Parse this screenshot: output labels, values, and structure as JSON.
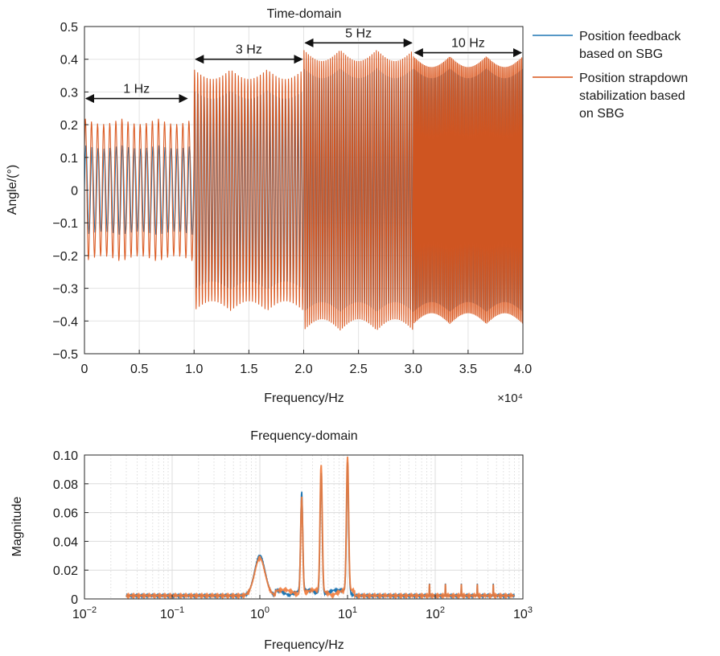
{
  "chart_data": [
    {
      "type": "line",
      "title": "Time-domain",
      "xlabel": "Frequency/Hz",
      "ylabel": "Angle/(°)",
      "x_multiplier": "×10⁴",
      "xlim": [
        0,
        4.0
      ],
      "ylim": [
        -0.5,
        0.5
      ],
      "x_ticks": [
        "0",
        "0.5",
        "1.0",
        "1.5",
        "2.0",
        "2.5",
        "3.0",
        "3.5",
        "4.0"
      ],
      "y_ticks": [
        "0.5",
        "0.4",
        "0.3",
        "0.2",
        "0.1",
        "0",
        "−0.1",
        "−0.2",
        "−0.3",
        "−0.4",
        "−0.5"
      ],
      "grid": true,
      "legend_position": "right",
      "series": [
        {
          "name": "Position feedback based on SBG",
          "color": "#1f77b4",
          "segments": [
            {
              "x_range": [
                0,
                1.0
              ],
              "amplitude": 0.14,
              "cycles": 18
            },
            {
              "x_range": [
                1.0,
                2.0
              ],
              "amplitude": 0.31,
              "cycles": 35
            },
            {
              "x_range": [
                2.0,
                3.0
              ],
              "amplitude": 0.38,
              "cycles": 50
            },
            {
              "x_range": [
                3.0,
                4.0
              ],
              "amplitude": 0.38,
              "cycles": 80
            }
          ]
        },
        {
          "name": "Position strapdown stabilization based on SBG",
          "color": "#d95319",
          "segments": [
            {
              "x_range": [
                0,
                1.0
              ],
              "amplitude": 0.22,
              "cycles": 18
            },
            {
              "x_range": [
                1.0,
                2.0
              ],
              "amplitude": 0.37,
              "cycles": 35
            },
            {
              "x_range": [
                2.0,
                3.0
              ],
              "amplitude": 0.43,
              "cycles": 50
            },
            {
              "x_range": [
                3.0,
                4.0
              ],
              "amplitude": 0.41,
              "cycles": 80
            }
          ]
        }
      ],
      "annotations": [
        {
          "label": "1 Hz",
          "x_range": [
            0.0,
            0.95
          ],
          "y": 0.28
        },
        {
          "label": "3 Hz",
          "x_range": [
            1.0,
            2.0
          ],
          "y": 0.4
        },
        {
          "label": "5 Hz",
          "x_range": [
            2.0,
            3.0
          ],
          "y": 0.45
        },
        {
          "label": "10 Hz",
          "x_range": [
            3.0,
            4.0
          ],
          "y": 0.42
        }
      ]
    },
    {
      "type": "line",
      "title": "Frequency-domain",
      "xlabel": "Frequency/Hz",
      "ylabel": "Magnitude",
      "xscale": "log",
      "xlim": [
        0.01,
        1000
      ],
      "ylim": [
        0,
        0.1
      ],
      "x_ticks": [
        {
          "base": "10",
          "exp": "−2"
        },
        {
          "base": "10",
          "exp": "−1"
        },
        {
          "base": "10",
          "exp": "0"
        },
        {
          "base": "10",
          "exp": "1"
        },
        {
          "base": "10",
          "exp": "2"
        },
        {
          "base": "10",
          "exp": "3"
        }
      ],
      "y_ticks": [
        "0.10",
        "0.08",
        "0.06",
        "0.04",
        "0.02",
        "0"
      ],
      "grid": true,
      "series": [
        {
          "name": "",
          "color": "#1f77b4",
          "peaks": [
            {
              "f": 1,
              "mag": 0.028
            },
            {
              "f": 3,
              "mag": 0.069
            },
            {
              "f": 5,
              "mag": 0.085
            },
            {
              "f": 10,
              "mag": 0.09
            }
          ]
        },
        {
          "name": "",
          "color": "#f07a3a",
          "peaks": [
            {
              "f": 1,
              "mag": 0.026
            },
            {
              "f": 3,
              "mag": 0.068
            },
            {
              "f": 5,
              "mag": 0.088
            },
            {
              "f": 10,
              "mag": 0.093
            }
          ]
        }
      ]
    }
  ]
}
